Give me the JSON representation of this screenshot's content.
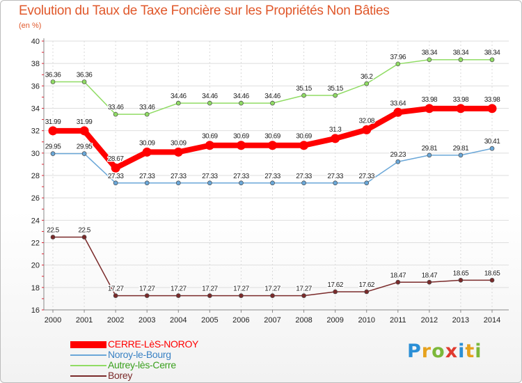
{
  "chart_data": {
    "type": "line",
    "title": "Evolution du Taux de Taxe Foncière sur les Propriétés Non Bâties",
    "subtitle": "(en %)",
    "ylim": [
      16,
      40
    ],
    "yticks": [
      16,
      18,
      20,
      22,
      24,
      26,
      28,
      30,
      32,
      34,
      36,
      38,
      40
    ],
    "categories": [
      "2000",
      "2001",
      "2002",
      "2003",
      "2004",
      "2005",
      "2006",
      "2007",
      "2008",
      "2009",
      "2010",
      "2011",
      "2012",
      "2013",
      "2014"
    ],
    "series": [
      {
        "name": "CERRE-LèS-NOROY",
        "color": "#ff0000",
        "emphasis": true,
        "values": [
          31.99,
          31.99,
          28.67,
          30.09,
          30.09,
          30.69,
          30.69,
          30.69,
          30.69,
          31.3,
          32.08,
          33.64,
          33.98,
          33.98,
          33.98
        ],
        "labels": [
          "31.99",
          "31.99",
          "28.67",
          "30.09",
          "30.09",
          "30.69",
          "30.69",
          "30.69",
          "30.69",
          "31.3",
          "32.08",
          "33.64",
          "33.98",
          "33.98",
          "33.98"
        ]
      },
      {
        "name": "Noroy-le-Bourg",
        "color": "#6aa7d8",
        "values": [
          29.95,
          29.95,
          27.33,
          27.33,
          27.33,
          27.33,
          27.33,
          27.33,
          27.33,
          27.33,
          27.33,
          29.23,
          29.81,
          29.81,
          30.41
        ],
        "labels": [
          "29.95",
          "29.95",
          "27.33",
          "27.33",
          "27.33",
          "27.33",
          "27.33",
          "27.33",
          "27.33",
          "27.33",
          "27.33",
          "29.23",
          "29.81",
          "29.81",
          "30.41"
        ]
      },
      {
        "name": "Autrey-lès-Cerre",
        "color": "#90dc64",
        "values": [
          36.36,
          36.36,
          33.46,
          33.46,
          34.46,
          34.46,
          34.46,
          34.46,
          35.15,
          35.15,
          36.2,
          37.96,
          38.34,
          38.34,
          38.34
        ],
        "labels": [
          "36.36",
          "36.36",
          "33.46",
          "33.46",
          "34.46",
          "34.46",
          "34.46",
          "34.46",
          "35.15",
          "35.15",
          "36.2",
          "37.96",
          "38.34",
          "38.34",
          "38.34"
        ]
      },
      {
        "name": "Borey",
        "color": "#7a2a2a",
        "values": [
          22.5,
          22.5,
          17.27,
          17.27,
          17.27,
          17.27,
          17.27,
          17.27,
          17.27,
          17.62,
          17.62,
          18.47,
          18.47,
          18.65,
          18.65
        ],
        "labels": [
          "22.5",
          "22.5",
          "17.27",
          "17.27",
          "17.27",
          "17.27",
          "17.27",
          "17.27",
          "17.27",
          "17.62",
          "17.62",
          "18.47",
          "18.47",
          "18.65",
          "18.65"
        ]
      }
    ]
  },
  "logo": {
    "letters": [
      "P",
      "r",
      "o",
      "x",
      "i",
      "t",
      "i"
    ],
    "text": "Proxiti"
  }
}
